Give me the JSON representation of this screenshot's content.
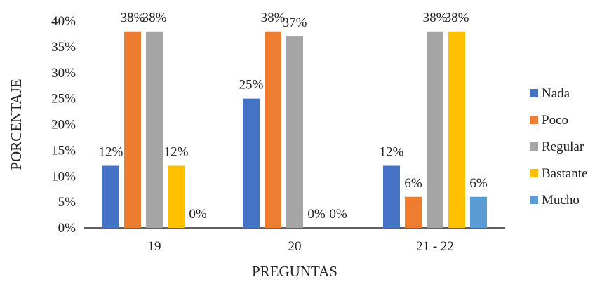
{
  "chart_data": {
    "type": "bar",
    "xlabel": "PREGUNTAS",
    "ylabel": "PORCENTAJE",
    "categories": [
      "19",
      "20",
      "21 - 22"
    ],
    "series": [
      {
        "name": "Nada",
        "color": "#4472C4",
        "values": [
          12,
          25,
          12
        ],
        "labels": [
          "12%",
          "25%",
          "12%"
        ]
      },
      {
        "name": "Poco",
        "color": "#ED7D31",
        "values": [
          38,
          38,
          6
        ],
        "labels": [
          "38%",
          "38%",
          "6%"
        ]
      },
      {
        "name": "Regular",
        "color": "#A5A5A5",
        "values": [
          38,
          37,
          38
        ],
        "labels": [
          "38%",
          "37%",
          "38%"
        ]
      },
      {
        "name": "Bastante",
        "color": "#FFC000",
        "values": [
          12,
          0,
          38
        ],
        "labels": [
          "12%",
          "0%",
          "38%"
        ]
      },
      {
        "name": "Mucho",
        "color": "#5B9BD5",
        "values": [
          0,
          0,
          6
        ],
        "labels": [
          "0%",
          "0%",
          "6%"
        ]
      }
    ],
    "ylim": [
      0,
      40
    ],
    "yticks": [
      "0%",
      "5%",
      "10%",
      "15%",
      "20%",
      "25%",
      "30%",
      "35%",
      "40%"
    ],
    "grid": false,
    "legend": "right"
  }
}
